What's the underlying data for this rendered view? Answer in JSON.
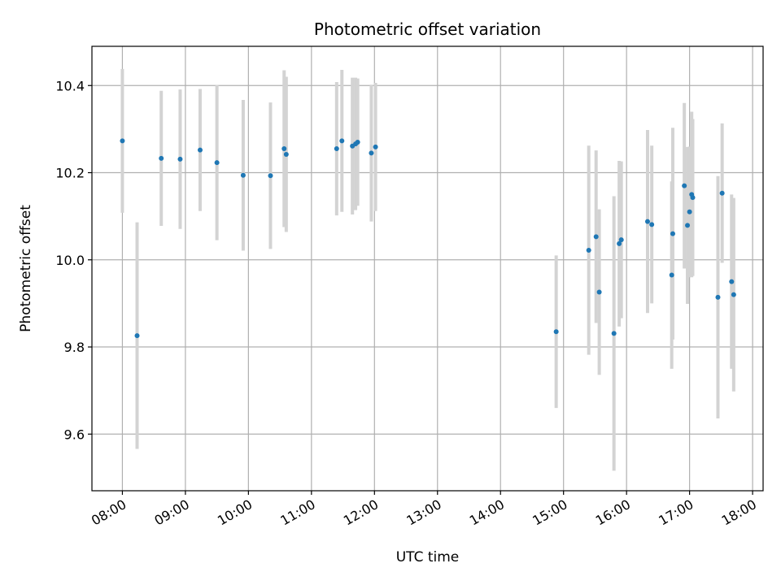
{
  "chart_data": {
    "type": "scatter",
    "title": "Photometric offset variation",
    "xlabel": "UTC time",
    "ylabel": "Photometric offset",
    "x_unit": "UTC time (HH:MM)",
    "xlim": [
      "07:31",
      "18:10"
    ],
    "ylim": [
      9.47,
      10.49
    ],
    "x_ticks": [
      "08:00",
      "09:00",
      "10:00",
      "11:00",
      "12:00",
      "13:00",
      "14:00",
      "15:00",
      "16:00",
      "17:00",
      "18:00"
    ],
    "y_ticks": [
      9.6,
      9.8,
      10.0,
      10.2,
      10.4
    ],
    "y_tick_labels": [
      "9.6",
      "9.8",
      "10.0",
      "10.2",
      "10.4"
    ],
    "grid": true,
    "legend": false,
    "colors": {
      "marker": "#1f77b4",
      "errorbar": "#d3d3d3",
      "grid": "#b0b0b0",
      "axes": "#000000"
    },
    "series": [
      {
        "points": [
          {
            "x": "08:00",
            "y": 10.273,
            "err": 0.165
          },
          {
            "x": "08:14",
            "y": 9.826,
            "err": 0.26
          },
          {
            "x": "08:37",
            "y": 10.233,
            "err": 0.155
          },
          {
            "x": "08:55",
            "y": 10.231,
            "err": 0.16
          },
          {
            "x": "09:14",
            "y": 10.252,
            "err": 0.14
          },
          {
            "x": "09:30",
            "y": 10.223,
            "err": 0.178
          },
          {
            "x": "09:55",
            "y": 10.194,
            "err": 0.173
          },
          {
            "x": "10:21",
            "y": 10.193,
            "err": 0.168
          },
          {
            "x": "10:34",
            "y": 10.255,
            "err": 0.18
          },
          {
            "x": "10:36",
            "y": 10.242,
            "err": 0.178
          },
          {
            "x": "11:24",
            "y": 10.255,
            "err": 0.153
          },
          {
            "x": "11:29",
            "y": 10.273,
            "err": 0.163
          },
          {
            "x": "11:39",
            "y": 10.261,
            "err": 0.157
          },
          {
            "x": "11:42",
            "y": 10.266,
            "err": 0.152
          },
          {
            "x": "11:44",
            "y": 10.27,
            "err": 0.146
          },
          {
            "x": "11:57",
            "y": 10.245,
            "err": 0.157
          },
          {
            "x": "12:01",
            "y": 10.259,
            "err": 0.147
          },
          {
            "x": "14:53",
            "y": 9.835,
            "err": 0.175
          },
          {
            "x": "15:24",
            "y": 10.022,
            "err": 0.24
          },
          {
            "x": "15:31",
            "y": 10.053,
            "err": 0.198
          },
          {
            "x": "15:34",
            "y": 9.926,
            "err": 0.19
          },
          {
            "x": "15:48",
            "y": 9.831,
            "err": 0.315
          },
          {
            "x": "15:53",
            "y": 10.037,
            "err": 0.19
          },
          {
            "x": "15:55",
            "y": 10.046,
            "err": 0.18
          },
          {
            "x": "16:20",
            "y": 10.088,
            "err": 0.21
          },
          {
            "x": "16:24",
            "y": 10.081,
            "err": 0.181
          },
          {
            "x": "16:43",
            "y": 9.965,
            "err": 0.215
          },
          {
            "x": "16:44",
            "y": 10.06,
            "err": 0.243
          },
          {
            "x": "16:55",
            "y": 10.17,
            "err": 0.19
          },
          {
            "x": "16:58",
            "y": 10.079,
            "err": 0.18
          },
          {
            "x": "17:00",
            "y": 10.11,
            "err": 0.15
          },
          {
            "x": "17:02",
            "y": 10.15,
            "err": 0.19
          },
          {
            "x": "17:03",
            "y": 10.143,
            "err": 0.18
          },
          {
            "x": "17:27",
            "y": 9.914,
            "err": 0.278
          },
          {
            "x": "17:31",
            "y": 10.153,
            "err": 0.16
          },
          {
            "x": "17:40",
            "y": 9.95,
            "err": 0.2
          },
          {
            "x": "17:42",
            "y": 9.92,
            "err": 0.222
          }
        ]
      }
    ]
  }
}
